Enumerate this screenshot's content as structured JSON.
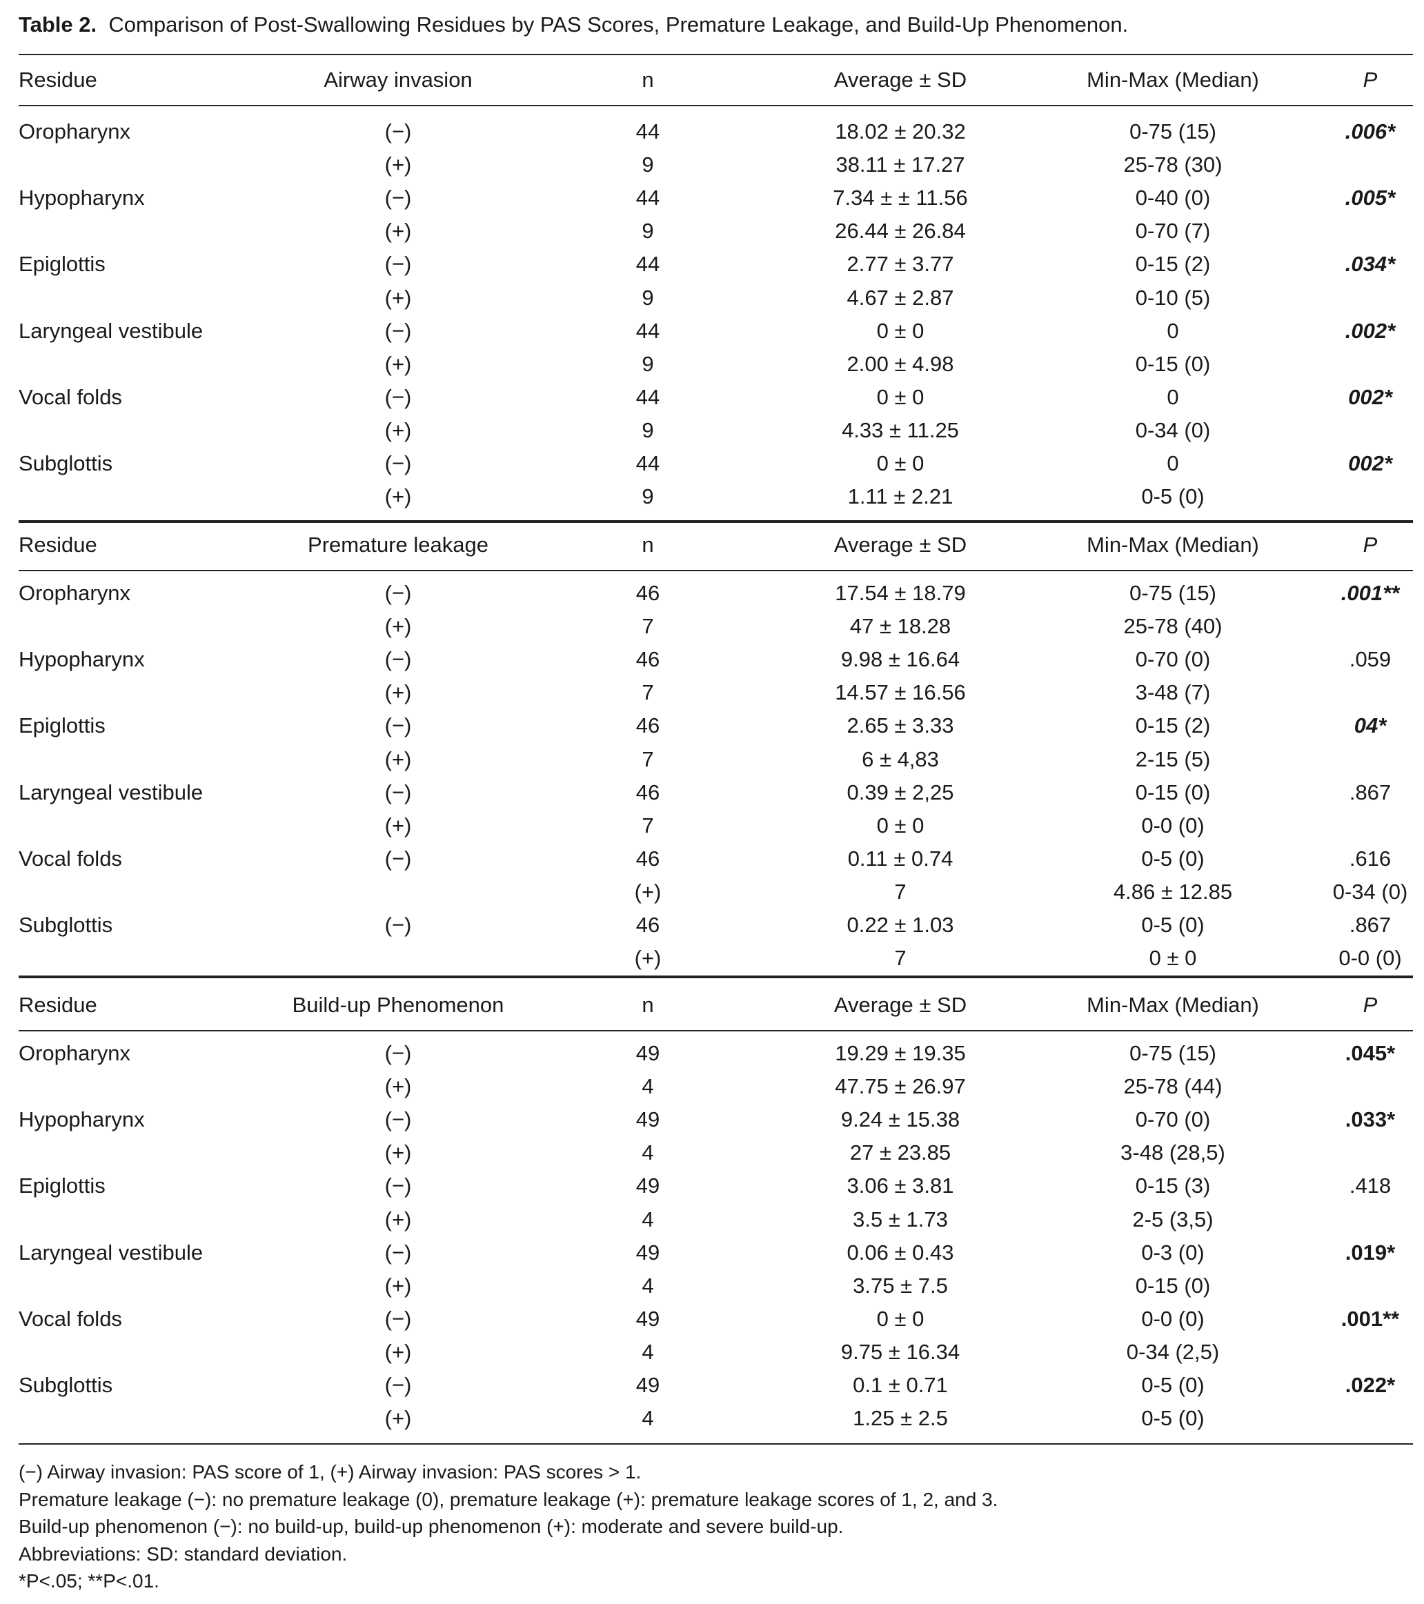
{
  "title": {
    "label": "Table 2.",
    "text": "Comparison of Post-Swallowing Residues by PAS Scores, Premature Leakage, and Build-Up Phenomenon."
  },
  "sections": [
    {
      "headers": [
        "Residue",
        "Airway invasion",
        "n",
        "Average ± SD",
        "Min-Max (Median)",
        "P"
      ],
      "rows": [
        {
          "cells": [
            "Oropharynx",
            "(−)",
            "44",
            "18.02 ± 20.32",
            "0-75 (15)",
            ".006*"
          ],
          "p_style": "bi"
        },
        {
          "cells": [
            "",
            "(+)",
            "9",
            "38.11 ± 17.27",
            "25-78 (30)",
            ""
          ],
          "p_style": ""
        },
        {
          "cells": [
            "Hypopharynx",
            "(−)",
            "44",
            "7.34 ± ± 11.56",
            "0-40 (0)",
            ".005*"
          ],
          "p_style": "bi"
        },
        {
          "cells": [
            "",
            "(+)",
            "9",
            "26.44 ± 26.84",
            "0-70 (7)",
            ""
          ],
          "p_style": ""
        },
        {
          "cells": [
            "Epiglottis",
            "(−)",
            "44",
            "2.77 ± 3.77",
            "0-15 (2)",
            ".034*"
          ],
          "p_style": "bi"
        },
        {
          "cells": [
            "",
            "(+)",
            "9",
            "4.67 ± 2.87",
            "0-10 (5)",
            ""
          ],
          "p_style": ""
        },
        {
          "cells": [
            "Laryngeal vestibule",
            "(−)",
            "44",
            "0 ± 0",
            "0",
            ".002*"
          ],
          "p_style": "bi"
        },
        {
          "cells": [
            "",
            "(+)",
            "9",
            "2.00 ± 4.98",
            "0-15 (0)",
            ""
          ],
          "p_style": ""
        },
        {
          "cells": [
            "Vocal folds",
            "(−)",
            "44",
            "0 ± 0",
            "0",
            "002*"
          ],
          "p_style": "bi"
        },
        {
          "cells": [
            "",
            "(+)",
            "9",
            "4.33 ± 11.25",
            "0-34 (0)",
            ""
          ],
          "p_style": ""
        },
        {
          "cells": [
            "Subglottis",
            "(−)",
            "44",
            "0 ± 0",
            "0",
            "002*"
          ],
          "p_style": "bi"
        },
        {
          "cells": [
            "",
            "(+)",
            "9",
            "1.11 ± 2.21",
            "0-5 (0)",
            ""
          ],
          "p_style": ""
        }
      ]
    },
    {
      "headers": [
        "Residue",
        "Premature leakage",
        "n",
        "Average ± SD",
        "Min-Max (Median)",
        "P"
      ],
      "rows": [
        {
          "cells": [
            "Oropharynx",
            "(−)",
            "46",
            "17.54 ± 18.79",
            "0-75 (15)",
            ".001**"
          ],
          "p_style": "bi"
        },
        {
          "cells": [
            "",
            "(+)",
            "7",
            "47 ± 18.28",
            "25-78 (40)",
            ""
          ],
          "p_style": ""
        },
        {
          "cells": [
            "Hypopharynx",
            "(−)",
            "46",
            "9.98 ± 16.64",
            "0-70 (0)",
            ".059"
          ],
          "p_style": ""
        },
        {
          "cells": [
            "",
            "(+)",
            "7",
            "14.57 ± 16.56",
            "3-48 (7)",
            ""
          ],
          "p_style": ""
        },
        {
          "cells": [
            "Epiglottis",
            "(−)",
            "46",
            "2.65 ± 3.33",
            "0-15 (2)",
            "04*"
          ],
          "p_style": "bi"
        },
        {
          "cells": [
            "",
            "(+)",
            "7",
            "6 ± 4,83",
            "2-15 (5)",
            ""
          ],
          "p_style": ""
        },
        {
          "cells": [
            "Laryngeal vestibule",
            "(−)",
            "46",
            "0.39 ± 2,25",
            "0-15 (0)",
            ".867"
          ],
          "p_style": ""
        },
        {
          "cells": [
            "",
            "(+)",
            "7",
            "0 ± 0",
            "0-0 (0)",
            ""
          ],
          "p_style": ""
        },
        {
          "cells": [
            "Vocal folds",
            "(−)",
            "46",
            "0.11 ± 0.74",
            "0-5 (0)",
            ".616"
          ],
          "p_style": ""
        },
        {
          "cells": [
            "",
            "",
            "(+)",
            "7",
            "4.86 ± 12.85",
            "0-34 (0)"
          ],
          "p_style": ""
        },
        {
          "cells": [
            "Subglottis",
            "(−)",
            "46",
            "0.22 ± 1.03",
            "0-5 (0)",
            ".867"
          ],
          "p_style": ""
        },
        {
          "cells": [
            "",
            "",
            "(+)",
            "7",
            "0 ± 0",
            "0-0 (0)"
          ],
          "p_style": ""
        }
      ]
    },
    {
      "headers": [
        "Residue",
        "Build-up Phenomenon",
        "n",
        "Average ± SD",
        "Min-Max (Median)",
        "P"
      ],
      "rows": [
        {
          "cells": [
            "Oropharynx",
            "(−)",
            "49",
            "19.29 ± 19.35",
            "0-75 (15)",
            ".045*"
          ],
          "p_style": "b"
        },
        {
          "cells": [
            "",
            "(+)",
            "4",
            "47.75 ± 26.97",
            "25-78 (44)",
            ""
          ],
          "p_style": ""
        },
        {
          "cells": [
            "Hypopharynx",
            "(−)",
            "49",
            "9.24 ± 15.38",
            "0-70 (0)",
            ".033*"
          ],
          "p_style": "b"
        },
        {
          "cells": [
            "",
            "(+)",
            "4",
            "27 ± 23.85",
            "3-48 (28,5)",
            ""
          ],
          "p_style": ""
        },
        {
          "cells": [
            "Epiglottis",
            "(−)",
            "49",
            "3.06 ± 3.81",
            "0-15 (3)",
            ".418"
          ],
          "p_style": ""
        },
        {
          "cells": [
            "",
            "(+)",
            "4",
            "3.5 ± 1.73",
            "2-5 (3,5)",
            ""
          ],
          "p_style": ""
        },
        {
          "cells": [
            "Laryngeal vestibule",
            "(−)",
            "49",
            "0.06 ± 0.43",
            "0-3 (0)",
            ".019*"
          ],
          "p_style": "b"
        },
        {
          "cells": [
            "",
            "(+)",
            "4",
            "3.75 ± 7.5",
            "0-15 (0)",
            ""
          ],
          "p_style": ""
        },
        {
          "cells": [
            "Vocal folds",
            "(−)",
            "49",
            "0 ± 0",
            "0-0 (0)",
            ".001**"
          ],
          "p_style": "b"
        },
        {
          "cells": [
            "",
            "(+)",
            "4",
            "9.75 ± 16.34",
            "0-34 (2,5)",
            ""
          ],
          "p_style": ""
        },
        {
          "cells": [
            "Subglottis",
            "(−)",
            "49",
            "0.1 ± 0.71",
            "0-5 (0)",
            ".022*"
          ],
          "p_style": "b"
        },
        {
          "cells": [
            "",
            "(+)",
            "4",
            "1.25 ± 2.5",
            "0-5 (0)",
            ""
          ],
          "p_style": ""
        }
      ]
    }
  ],
  "footnotes": [
    "(−) Airway invasion: PAS score of 1, (+) Airway invasion: PAS scores > 1.",
    "Premature leakage (−): no premature leakage (0), premature leakage (+): premature leakage scores of 1, 2, and 3.",
    "Build-up phenomenon (−): no build-up, build-up phenomenon (+): moderate and severe build-up.",
    "Abbreviations: SD: standard deviation.",
    "*P<.05; **P<.01."
  ]
}
